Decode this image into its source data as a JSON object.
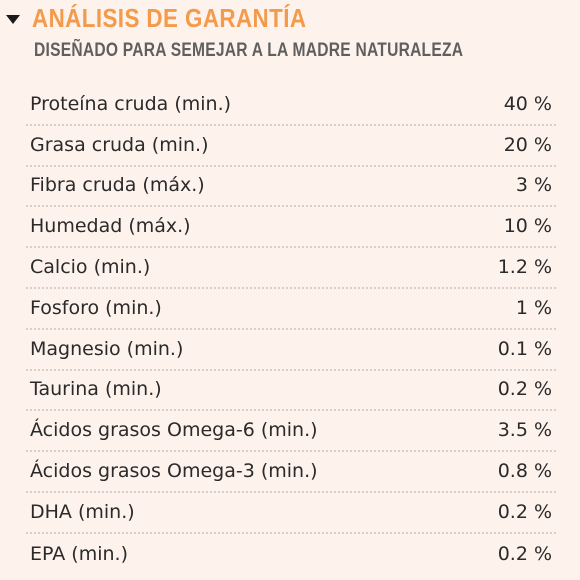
{
  "section": {
    "title": "ANÁLISIS DE GARANTÍA",
    "subtitle": "DISEÑADO PARA SEMEJAR A LA MADRE NATURALEZA",
    "accent_color": "#f39a4b",
    "toggle_icon": "caret-down-icon"
  },
  "rows": [
    {
      "label": "Proteína cruda (min.)",
      "value": "40 %"
    },
    {
      "label": "Grasa cruda (min.)",
      "value": "20 %"
    },
    {
      "label": "Fibra cruda (máx.)",
      "value": "3 %"
    },
    {
      "label": "Humedad (máx.)",
      "value": "10 %"
    },
    {
      "label": "Calcio (min.)",
      "value": "1.2 %"
    },
    {
      "label": "Fosforo (min.)",
      "value": "1 %"
    },
    {
      "label": "Magnesio (min.)",
      "value": "0.1 %"
    },
    {
      "label": "Taurina (min.)",
      "value": "0.2 %"
    },
    {
      "label": "Ácidos grasos Omega-6 (min.)",
      "value": "3.5 %"
    },
    {
      "label": "Ácidos grasos Omega-3 (min.)",
      "value": "0.8 %"
    },
    {
      "label": "DHA (min.)",
      "value": "0.2 %"
    },
    {
      "label": "EPA (min.)",
      "value": "0.2 %"
    }
  ]
}
